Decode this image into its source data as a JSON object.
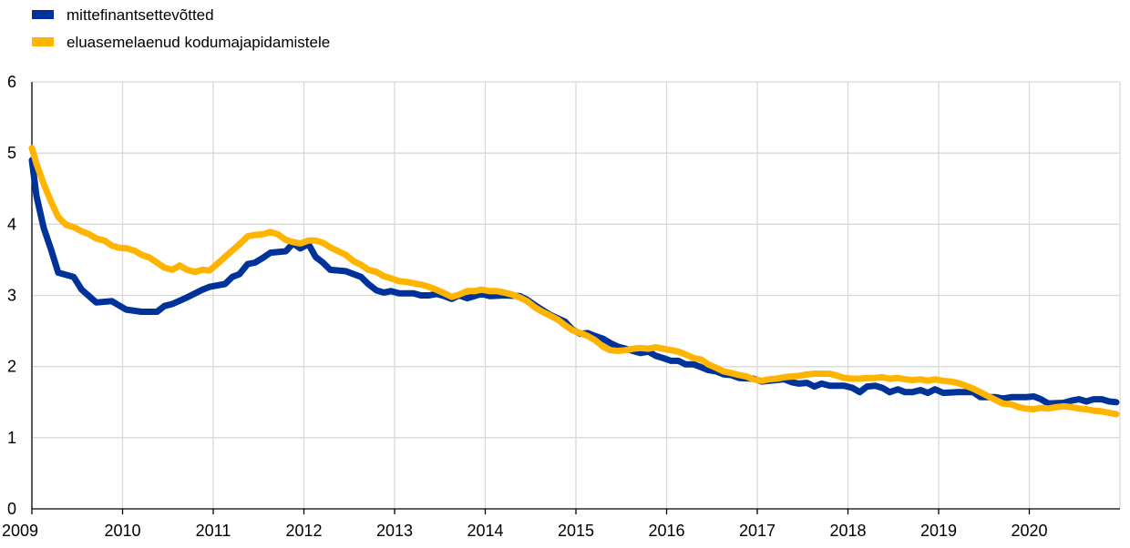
{
  "chart_data": {
    "type": "line",
    "title": "",
    "xlabel": "",
    "ylabel": "",
    "xlim": [
      2009,
      2021
    ],
    "ylim": [
      0,
      6
    ],
    "x_ticks": [
      "2009",
      "2010",
      "2011",
      "2012",
      "2013",
      "2014",
      "2015",
      "2016",
      "2017",
      "2018",
      "2019",
      "2020"
    ],
    "y_ticks": [
      "0",
      "1",
      "2",
      "3",
      "4",
      "5",
      "6"
    ],
    "grid": true,
    "legend_position": "top-left",
    "series": [
      {
        "name": "mittefinantsettevõtted",
        "color": "#003399",
        "points": [
          [
            2009.0,
            4.9
          ],
          [
            2009.05,
            4.4
          ],
          [
            2009.13,
            3.95
          ],
          [
            2009.21,
            3.65
          ],
          [
            2009.29,
            3.32
          ],
          [
            2009.46,
            3.26
          ],
          [
            2009.55,
            3.08
          ],
          [
            2009.71,
            2.9
          ],
          [
            2009.88,
            2.92
          ],
          [
            2010.04,
            2.8
          ],
          [
            2010.21,
            2.77
          ],
          [
            2010.38,
            2.77
          ],
          [
            2010.46,
            2.85
          ],
          [
            2010.55,
            2.88
          ],
          [
            2010.71,
            2.97
          ],
          [
            2010.88,
            3.08
          ],
          [
            2010.96,
            3.12
          ],
          [
            2011.13,
            3.16
          ],
          [
            2011.21,
            3.26
          ],
          [
            2011.29,
            3.3
          ],
          [
            2011.38,
            3.44
          ],
          [
            2011.46,
            3.46
          ],
          [
            2011.55,
            3.53
          ],
          [
            2011.63,
            3.6
          ],
          [
            2011.8,
            3.62
          ],
          [
            2011.88,
            3.73
          ],
          [
            2011.96,
            3.66
          ],
          [
            2012.05,
            3.72
          ],
          [
            2012.13,
            3.54
          ],
          [
            2012.21,
            3.46
          ],
          [
            2012.29,
            3.36
          ],
          [
            2012.46,
            3.34
          ],
          [
            2012.63,
            3.26
          ],
          [
            2012.71,
            3.16
          ],
          [
            2012.8,
            3.07
          ],
          [
            2012.88,
            3.04
          ],
          [
            2012.96,
            3.06
          ],
          [
            2013.05,
            3.03
          ],
          [
            2013.21,
            3.03
          ],
          [
            2013.29,
            3.0
          ],
          [
            2013.38,
            3.0
          ],
          [
            2013.46,
            3.02
          ],
          [
            2013.55,
            2.99
          ],
          [
            2013.63,
            2.95
          ],
          [
            2013.71,
            3.0
          ],
          [
            2013.8,
            2.96
          ],
          [
            2013.96,
            3.02
          ],
          [
            2014.05,
            2.99
          ],
          [
            2014.21,
            3.0
          ],
          [
            2014.38,
            2.99
          ],
          [
            2014.46,
            2.94
          ],
          [
            2014.55,
            2.86
          ],
          [
            2014.71,
            2.73
          ],
          [
            2014.88,
            2.63
          ],
          [
            2014.96,
            2.52
          ],
          [
            2015.05,
            2.46
          ],
          [
            2015.13,
            2.47
          ],
          [
            2015.21,
            2.43
          ],
          [
            2015.3,
            2.39
          ],
          [
            2015.38,
            2.33
          ],
          [
            2015.46,
            2.28
          ],
          [
            2015.55,
            2.25
          ],
          [
            2015.63,
            2.22
          ],
          [
            2015.71,
            2.19
          ],
          [
            2015.8,
            2.21
          ],
          [
            2015.88,
            2.15
          ],
          [
            2015.96,
            2.12
          ],
          [
            2016.05,
            2.08
          ],
          [
            2016.13,
            2.08
          ],
          [
            2016.21,
            2.03
          ],
          [
            2016.3,
            2.03
          ],
          [
            2016.38,
            1.99
          ],
          [
            2016.46,
            1.95
          ],
          [
            2016.55,
            1.93
          ],
          [
            2016.63,
            1.89
          ],
          [
            2016.71,
            1.88
          ],
          [
            2016.8,
            1.84
          ],
          [
            2016.96,
            1.83
          ],
          [
            2017.05,
            1.79
          ],
          [
            2017.13,
            1.8
          ],
          [
            2017.21,
            1.81
          ],
          [
            2017.3,
            1.82
          ],
          [
            2017.38,
            1.78
          ],
          [
            2017.46,
            1.76
          ],
          [
            2017.55,
            1.77
          ],
          [
            2017.63,
            1.72
          ],
          [
            2017.71,
            1.76
          ],
          [
            2017.8,
            1.73
          ],
          [
            2017.96,
            1.73
          ],
          [
            2018.05,
            1.7
          ],
          [
            2018.13,
            1.64
          ],
          [
            2018.21,
            1.72
          ],
          [
            2018.3,
            1.73
          ],
          [
            2018.38,
            1.7
          ],
          [
            2018.46,
            1.64
          ],
          [
            2018.55,
            1.68
          ],
          [
            2018.63,
            1.64
          ],
          [
            2018.71,
            1.64
          ],
          [
            2018.8,
            1.67
          ],
          [
            2018.88,
            1.63
          ],
          [
            2018.96,
            1.68
          ],
          [
            2019.05,
            1.63
          ],
          [
            2019.21,
            1.64
          ],
          [
            2019.38,
            1.64
          ],
          [
            2019.46,
            1.57
          ],
          [
            2019.63,
            1.57
          ],
          [
            2019.71,
            1.55
          ],
          [
            2019.8,
            1.57
          ],
          [
            2019.96,
            1.57
          ],
          [
            2020.05,
            1.58
          ],
          [
            2020.13,
            1.54
          ],
          [
            2020.21,
            1.48
          ],
          [
            2020.38,
            1.49
          ],
          [
            2020.46,
            1.52
          ],
          [
            2020.55,
            1.54
          ],
          [
            2020.63,
            1.51
          ],
          [
            2020.71,
            1.54
          ],
          [
            2020.8,
            1.54
          ],
          [
            2020.88,
            1.51
          ],
          [
            2020.96,
            1.5
          ]
        ]
      },
      {
        "name": "eluasemelaenud kodumajapidamistele",
        "color": "#ffb400",
        "points": [
          [
            2009.0,
            5.07
          ],
          [
            2009.05,
            4.85
          ],
          [
            2009.13,
            4.57
          ],
          [
            2009.21,
            4.32
          ],
          [
            2009.29,
            4.1
          ],
          [
            2009.38,
            3.99
          ],
          [
            2009.46,
            3.96
          ],
          [
            2009.55,
            3.9
          ],
          [
            2009.63,
            3.86
          ],
          [
            2009.71,
            3.8
          ],
          [
            2009.8,
            3.77
          ],
          [
            2009.88,
            3.7
          ],
          [
            2009.96,
            3.67
          ],
          [
            2010.05,
            3.66
          ],
          [
            2010.13,
            3.63
          ],
          [
            2010.21,
            3.57
          ],
          [
            2010.3,
            3.53
          ],
          [
            2010.38,
            3.46
          ],
          [
            2010.46,
            3.39
          ],
          [
            2010.55,
            3.36
          ],
          [
            2010.63,
            3.42
          ],
          [
            2010.71,
            3.36
          ],
          [
            2010.8,
            3.33
          ],
          [
            2010.88,
            3.36
          ],
          [
            2010.96,
            3.35
          ],
          [
            2011.05,
            3.45
          ],
          [
            2011.13,
            3.54
          ],
          [
            2011.21,
            3.63
          ],
          [
            2011.3,
            3.73
          ],
          [
            2011.38,
            3.83
          ],
          [
            2011.46,
            3.85
          ],
          [
            2011.55,
            3.86
          ],
          [
            2011.63,
            3.89
          ],
          [
            2011.71,
            3.86
          ],
          [
            2011.8,
            3.78
          ],
          [
            2011.88,
            3.75
          ],
          [
            2011.96,
            3.73
          ],
          [
            2012.05,
            3.77
          ],
          [
            2012.13,
            3.77
          ],
          [
            2012.21,
            3.74
          ],
          [
            2012.3,
            3.67
          ],
          [
            2012.38,
            3.62
          ],
          [
            2012.46,
            3.57
          ],
          [
            2012.55,
            3.48
          ],
          [
            2012.63,
            3.43
          ],
          [
            2012.71,
            3.36
          ],
          [
            2012.8,
            3.33
          ],
          [
            2012.88,
            3.27
          ],
          [
            2012.96,
            3.24
          ],
          [
            2013.05,
            3.2
          ],
          [
            2013.13,
            3.19
          ],
          [
            2013.21,
            3.17
          ],
          [
            2013.3,
            3.15
          ],
          [
            2013.38,
            3.12
          ],
          [
            2013.46,
            3.08
          ],
          [
            2013.55,
            3.03
          ],
          [
            2013.63,
            2.98
          ],
          [
            2013.71,
            3.01
          ],
          [
            2013.8,
            3.06
          ],
          [
            2013.88,
            3.06
          ],
          [
            2013.96,
            3.08
          ],
          [
            2014.05,
            3.06
          ],
          [
            2014.13,
            3.06
          ],
          [
            2014.21,
            3.04
          ],
          [
            2014.3,
            3.01
          ],
          [
            2014.38,
            2.97
          ],
          [
            2014.46,
            2.92
          ],
          [
            2014.55,
            2.83
          ],
          [
            2014.63,
            2.77
          ],
          [
            2014.71,
            2.72
          ],
          [
            2014.8,
            2.66
          ],
          [
            2014.88,
            2.58
          ],
          [
            2014.96,
            2.51
          ],
          [
            2015.05,
            2.47
          ],
          [
            2015.13,
            2.43
          ],
          [
            2015.21,
            2.37
          ],
          [
            2015.3,
            2.28
          ],
          [
            2015.38,
            2.23
          ],
          [
            2015.46,
            2.22
          ],
          [
            2015.55,
            2.23
          ],
          [
            2015.63,
            2.25
          ],
          [
            2015.71,
            2.26
          ],
          [
            2015.8,
            2.25
          ],
          [
            2015.88,
            2.27
          ],
          [
            2015.96,
            2.25
          ],
          [
            2016.05,
            2.23
          ],
          [
            2016.13,
            2.21
          ],
          [
            2016.21,
            2.17
          ],
          [
            2016.3,
            2.12
          ],
          [
            2016.38,
            2.1
          ],
          [
            2016.46,
            2.03
          ],
          [
            2016.55,
            1.98
          ],
          [
            2016.63,
            1.93
          ],
          [
            2016.71,
            1.91
          ],
          [
            2016.8,
            1.88
          ],
          [
            2016.88,
            1.86
          ],
          [
            2016.96,
            1.82
          ],
          [
            2017.05,
            1.8
          ],
          [
            2017.13,
            1.82
          ],
          [
            2017.21,
            1.83
          ],
          [
            2017.3,
            1.85
          ],
          [
            2017.38,
            1.86
          ],
          [
            2017.46,
            1.87
          ],
          [
            2017.55,
            1.89
          ],
          [
            2017.63,
            1.9
          ],
          [
            2017.71,
            1.9
          ],
          [
            2017.8,
            1.9
          ],
          [
            2017.88,
            1.87
          ],
          [
            2017.96,
            1.84
          ],
          [
            2018.05,
            1.83
          ],
          [
            2018.13,
            1.83
          ],
          [
            2018.21,
            1.84
          ],
          [
            2018.3,
            1.84
          ],
          [
            2018.38,
            1.85
          ],
          [
            2018.46,
            1.83
          ],
          [
            2018.55,
            1.84
          ],
          [
            2018.63,
            1.82
          ],
          [
            2018.71,
            1.81
          ],
          [
            2018.8,
            1.82
          ],
          [
            2018.88,
            1.8
          ],
          [
            2018.96,
            1.82
          ],
          [
            2019.05,
            1.8
          ],
          [
            2019.13,
            1.79
          ],
          [
            2019.21,
            1.77
          ],
          [
            2019.3,
            1.73
          ],
          [
            2019.38,
            1.69
          ],
          [
            2019.46,
            1.64
          ],
          [
            2019.55,
            1.58
          ],
          [
            2019.63,
            1.53
          ],
          [
            2019.71,
            1.48
          ],
          [
            2019.8,
            1.47
          ],
          [
            2019.88,
            1.43
          ],
          [
            2019.96,
            1.41
          ],
          [
            2020.05,
            1.4
          ],
          [
            2020.13,
            1.42
          ],
          [
            2020.21,
            1.41
          ],
          [
            2020.3,
            1.43
          ],
          [
            2020.38,
            1.44
          ],
          [
            2020.46,
            1.43
          ],
          [
            2020.55,
            1.41
          ],
          [
            2020.63,
            1.4
          ],
          [
            2020.71,
            1.38
          ],
          [
            2020.8,
            1.37
          ],
          [
            2020.88,
            1.35
          ],
          [
            2020.96,
            1.33
          ]
        ]
      }
    ]
  }
}
